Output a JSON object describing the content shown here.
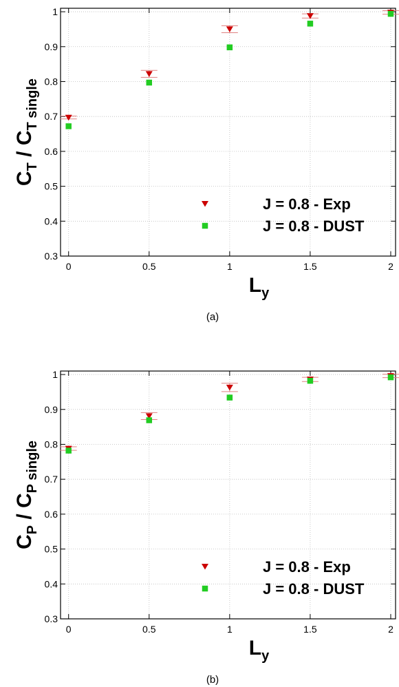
{
  "chart_data": [
    {
      "type": "scatter",
      "caption": "(a)",
      "ylabel": [
        {
          "text": "C"
        },
        {
          "text": "T",
          "sub": true
        },
        {
          "text": " / C"
        },
        {
          "text": "T single",
          "sub": true
        }
      ],
      "xlabel": [
        {
          "text": "L"
        },
        {
          "text": "y",
          "sub": true
        }
      ],
      "x": [
        0,
        0.5,
        1,
        1.5,
        2
      ],
      "series": [
        {
          "name": "J = 0.8 - Exp",
          "color": "#cc0000",
          "marker": "triangle-down",
          "values": [
            0.697,
            0.822,
            0.95,
            0.988,
            0.998
          ],
          "errors": [
            0.004,
            0.01,
            0.01,
            0.006,
            0.005
          ]
        },
        {
          "name": "J = 0.8 - DUST",
          "color": "#22cc22",
          "marker": "square",
          "values": [
            0.672,
            0.797,
            0.898,
            0.966,
            0.994
          ]
        }
      ],
      "xlim": [
        -0.05,
        2.03
      ],
      "ylim": [
        0.3,
        1.01
      ],
      "xticks": [
        0,
        0.5,
        1,
        1.5,
        2
      ],
      "yticks": [
        0.3,
        0.4,
        0.5,
        0.6,
        0.7,
        0.8,
        0.9,
        1
      ],
      "grid": true,
      "legend": "lower right"
    },
    {
      "type": "scatter",
      "caption": "(b)",
      "ylabel": [
        {
          "text": "C"
        },
        {
          "text": "P",
          "sub": true
        },
        {
          "text": " / C"
        },
        {
          "text": "P single",
          "sub": true
        }
      ],
      "xlabel": [
        {
          "text": "L"
        },
        {
          "text": "y",
          "sub": true
        }
      ],
      "x": [
        0,
        0.5,
        1,
        1.5,
        2
      ],
      "series": [
        {
          "name": "J = 0.8 - Exp",
          "color": "#cc0000",
          "marker": "triangle-down",
          "values": [
            0.788,
            0.881,
            0.963,
            0.986,
            0.996
          ],
          "errors": [
            0.005,
            0.01,
            0.012,
            0.006,
            0.005
          ]
        },
        {
          "name": "J = 0.8 - DUST",
          "color": "#22cc22",
          "marker": "square",
          "values": [
            0.782,
            0.869,
            0.934,
            0.982,
            0.992
          ]
        }
      ],
      "xlim": [
        -0.05,
        2.03
      ],
      "ylim": [
        0.3,
        1.01
      ],
      "xticks": [
        0,
        0.5,
        1,
        1.5,
        2
      ],
      "yticks": [
        0.3,
        0.4,
        0.5,
        0.6,
        0.7,
        0.8,
        0.9,
        1
      ],
      "grid": true,
      "legend": "lower right"
    }
  ]
}
